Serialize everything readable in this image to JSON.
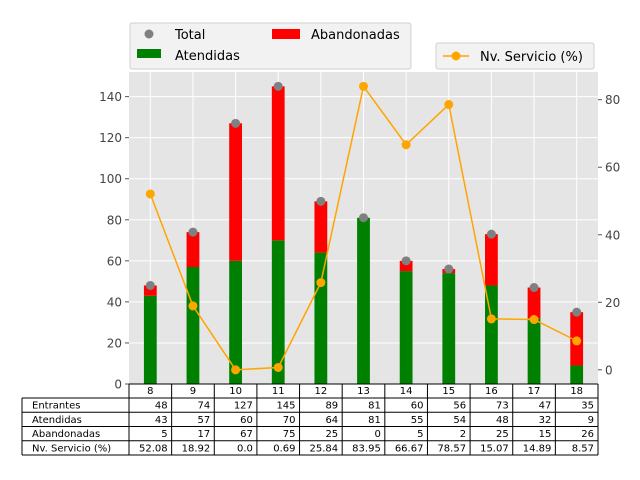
{
  "chart_data": {
    "type": "bar",
    "title": "",
    "xlabel": "",
    "ylabel": "",
    "categories": [
      "8",
      "9",
      "10",
      "11",
      "12",
      "13",
      "14",
      "15",
      "16",
      "17",
      "18"
    ],
    "series": [
      {
        "name": "Atendidas",
        "type": "stacked-bar",
        "color": "#008000",
        "values": [
          43,
          57,
          60,
          70,
          64,
          81,
          55,
          54,
          48,
          32,
          9
        ]
      },
      {
        "name": "Abandonadas",
        "type": "stacked-bar",
        "color": "#ff0000",
        "values": [
          5,
          17,
          67,
          75,
          25,
          0,
          5,
          2,
          25,
          15,
          26
        ]
      },
      {
        "name": "Total",
        "type": "scatter",
        "color": "#808080",
        "values": [
          48,
          74,
          127,
          145,
          89,
          81,
          60,
          56,
          73,
          47,
          35
        ]
      },
      {
        "name": "Nv. Servicio (%)",
        "type": "line",
        "axis": "right",
        "color": "#ffa500",
        "values": [
          52.08,
          18.92,
          0.0,
          0.69,
          25.84,
          83.95,
          66.67,
          78.57,
          15.07,
          14.89,
          8.57
        ]
      }
    ],
    "ylim_left": [
      0,
      152
    ],
    "ylim_right": [
      -4.2,
      88.2
    ],
    "yticks_left": [
      "0",
      "20",
      "40",
      "60",
      "80",
      "100",
      "120",
      "140"
    ],
    "yticks_right": [
      "0",
      "20",
      "40",
      "60",
      "80"
    ],
    "grid": true,
    "plot_background": "#e5e5e5",
    "legend_left": {
      "placement": "top-left",
      "entries": [
        "Total",
        "Atendidas",
        "Abandonadas"
      ]
    },
    "legend_right": {
      "placement": "top-right",
      "entries": [
        "Nv. Servicio (%)"
      ]
    },
    "table": {
      "columns": [
        "8",
        "9",
        "10",
        "11",
        "12",
        "13",
        "14",
        "15",
        "16",
        "17",
        "18"
      ],
      "rows": [
        {
          "label": "Entrantes",
          "cells": [
            "48",
            "74",
            "127",
            "145",
            "89",
            "81",
            "60",
            "56",
            "73",
            "47",
            "35"
          ]
        },
        {
          "label": "Atendidas",
          "cells": [
            "43",
            "57",
            "60",
            "70",
            "64",
            "81",
            "55",
            "54",
            "48",
            "32",
            "9"
          ]
        },
        {
          "label": "Abandonadas",
          "cells": [
            "5",
            "17",
            "67",
            "75",
            "25",
            "0",
            "5",
            "2",
            "25",
            "15",
            "26"
          ]
        },
        {
          "label": "Nv. Servicio (%)",
          "cells": [
            "52.08",
            "18.92",
            "0.0",
            "0.69",
            "25.84",
            "83.95",
            "66.67",
            "78.57",
            "15.07",
            "14.89",
            "8.57"
          ]
        }
      ]
    }
  }
}
